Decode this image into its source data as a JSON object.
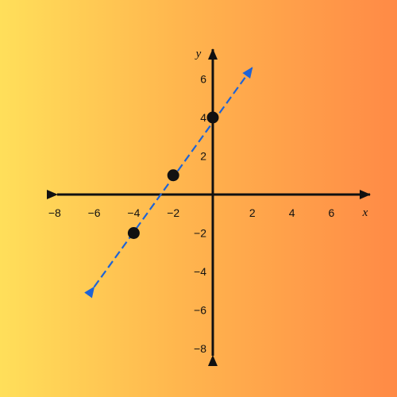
{
  "chart_data": {
    "type": "line",
    "title": "",
    "xlabel": "x",
    "ylabel": "y",
    "xlim": [
      -8,
      8
    ],
    "ylim": [
      -8,
      8
    ],
    "grid": false,
    "x_ticks": [
      -8,
      -6,
      -4,
      -2,
      2,
      4,
      6
    ],
    "x_tick_labels": [
      "−8",
      "−6",
      "−4",
      "−2",
      "2",
      "4",
      "6"
    ],
    "y_ticks": [
      6,
      4,
      2,
      -2,
      -4,
      -6,
      -8
    ],
    "y_tick_labels": [
      "6",
      "4",
      "2",
      "−2",
      "−4",
      "−6",
      "−8"
    ],
    "series": [
      {
        "style": "dashed",
        "color": "#1E63D6",
        "arrows": "both",
        "x": [
          -6,
          2
        ],
        "y": [
          -4.8,
          6.6
        ]
      }
    ],
    "points": [
      {
        "x": -4,
        "y": -2
      },
      {
        "x": -2,
        "y": 1
      },
      {
        "x": 0,
        "y": 4
      }
    ],
    "colors": {
      "axis": "#111111",
      "line": "#1E63D6",
      "point": "#111111"
    }
  }
}
